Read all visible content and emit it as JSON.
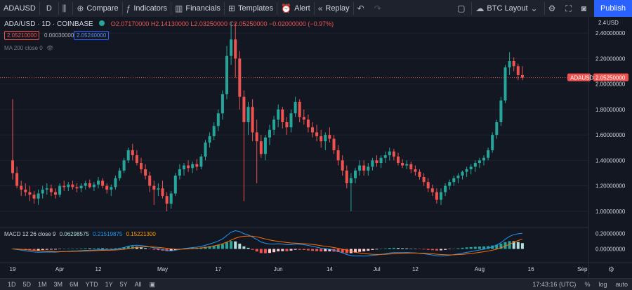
{
  "toolbar": {
    "symbol": "ADAUSD",
    "interval": "D",
    "compare": "Compare",
    "indicators": "Indicators",
    "financials": "Financials",
    "templates": "Templates",
    "alert": "Alert",
    "replay": "Replay",
    "layout": "BTC Layout",
    "publish": "Publish"
  },
  "legend": {
    "title": "ADA/USD · 1D · COINBASE",
    "open": "O2.07170000",
    "high": "H2.14130000",
    "low": "L2.03250000",
    "close": "C2.05250000",
    "change": "−0.02000000 (−0.97%)",
    "bid": "2.05210000",
    "spread": "0.00030000",
    "ask": "2.05240000",
    "ma": "MA 200 close 0",
    "macd_label": "MACD 12 26 close 9",
    "macd_v1": "0.06298575",
    "macd_v2": "0.21519875",
    "macd_v3": "0.15221300"
  },
  "price_axis": {
    "currency": "USD",
    "ticks": [
      "2.40000000",
      "2.20000000",
      "2.00000000",
      "1.80000000",
      "1.60000000",
      "1.40000000",
      "1.20000000",
      "1.00000000"
    ],
    "last_label": "ADAUSD",
    "last_value": "2.05250000"
  },
  "macd_axis": {
    "ticks": [
      "0.20000000",
      "0.00000000"
    ]
  },
  "time_axis": {
    "ticks": [
      "19",
      "Apr",
      "12",
      "May",
      "17",
      "Jun",
      "14",
      "Jul",
      "12",
      "Aug",
      "16",
      "Sep"
    ]
  },
  "bottom": {
    "ranges": [
      "1D",
      "5D",
      "1M",
      "3M",
      "6M",
      "YTD",
      "1Y",
      "5Y",
      "All"
    ],
    "time": "17:43:16 (UTC)",
    "percent": "%",
    "log": "log",
    "auto": "auto"
  },
  "colors": {
    "up": "#26a69a",
    "down": "#ef5350",
    "accent": "#2962ff",
    "macd": "#2196f3",
    "signal": "#ff6d00"
  },
  "chart_data": {
    "type": "candlestick",
    "symbol": "ADA/USD",
    "interval": "1D",
    "exchange": "COINBASE",
    "x_ticks": [
      "19",
      "Apr",
      "12",
      "May",
      "17",
      "Jun",
      "14",
      "Jul",
      "12",
      "Aug",
      "16",
      "Sep"
    ],
    "ylim": [
      0.9,
      2.5
    ],
    "candles": [
      [
        1.4,
        1.88,
        1.25,
        1.3
      ],
      [
        1.3,
        1.35,
        1.18,
        1.2
      ],
      [
        1.2,
        1.24,
        1.12,
        1.17
      ],
      [
        1.17,
        1.22,
        1.12,
        1.15
      ],
      [
        1.15,
        1.2,
        1.08,
        1.13
      ],
      [
        1.13,
        1.16,
        1.06,
        1.1
      ],
      [
        1.1,
        1.17,
        1.05,
        1.14
      ],
      [
        1.14,
        1.2,
        1.1,
        1.17
      ],
      [
        1.17,
        1.22,
        1.13,
        1.18
      ],
      [
        1.18,
        1.21,
        1.12,
        1.15
      ],
      [
        1.15,
        1.18,
        1.1,
        1.13
      ],
      [
        1.13,
        1.22,
        1.11,
        1.2
      ],
      [
        1.2,
        1.24,
        1.16,
        1.19
      ],
      [
        1.19,
        1.23,
        1.16,
        1.21
      ],
      [
        1.21,
        1.24,
        1.17,
        1.19
      ],
      [
        1.19,
        1.22,
        1.15,
        1.18
      ],
      [
        1.18,
        1.22,
        1.15,
        1.2
      ],
      [
        1.2,
        1.24,
        1.17,
        1.22
      ],
      [
        1.22,
        1.25,
        1.18,
        1.19
      ],
      [
        1.19,
        1.23,
        1.16,
        1.21
      ],
      [
        1.21,
        1.27,
        1.18,
        1.24
      ],
      [
        1.24,
        1.26,
        1.18,
        1.2
      ],
      [
        1.2,
        1.22,
        1.14,
        1.17
      ],
      [
        1.17,
        1.21,
        1.12,
        1.19
      ],
      [
        1.19,
        1.28,
        1.17,
        1.26
      ],
      [
        1.26,
        1.34,
        1.24,
        1.32
      ],
      [
        1.32,
        1.42,
        1.3,
        1.4
      ],
      [
        1.4,
        1.5,
        1.38,
        1.48
      ],
      [
        1.48,
        1.53,
        1.4,
        1.44
      ],
      [
        1.44,
        1.48,
        1.36,
        1.38
      ],
      [
        1.38,
        1.42,
        1.3,
        1.33
      ],
      [
        1.33,
        1.37,
        1.25,
        1.28
      ],
      [
        1.28,
        1.31,
        1.15,
        1.2
      ],
      [
        1.2,
        1.24,
        1.05,
        1.17
      ],
      [
        1.17,
        1.22,
        1.12,
        1.18
      ],
      [
        1.18,
        1.24,
        1.1,
        1.12
      ],
      [
        1.12,
        1.15,
        1.0,
        1.06
      ],
      [
        1.06,
        1.16,
        1.02,
        1.14
      ],
      [
        1.14,
        1.3,
        1.12,
        1.28
      ],
      [
        1.28,
        1.37,
        1.25,
        1.33
      ],
      [
        1.33,
        1.38,
        1.28,
        1.36
      ],
      [
        1.36,
        1.4,
        1.31,
        1.34
      ],
      [
        1.34,
        1.39,
        1.3,
        1.37
      ],
      [
        1.37,
        1.41,
        1.32,
        1.35
      ],
      [
        1.35,
        1.45,
        1.33,
        1.43
      ],
      [
        1.43,
        1.56,
        1.4,
        1.54
      ],
      [
        1.54,
        1.62,
        1.5,
        1.59
      ],
      [
        1.59,
        1.7,
        1.56,
        1.67
      ],
      [
        1.67,
        1.8,
        1.63,
        1.77
      ],
      [
        1.77,
        1.95,
        1.72,
        1.92
      ],
      [
        1.92,
        2.3,
        1.88,
        2.22
      ],
      [
        2.22,
        2.49,
        2.15,
        2.35
      ],
      [
        2.35,
        2.48,
        2.05,
        2.2
      ],
      [
        2.2,
        2.26,
        1.8,
        1.9
      ],
      [
        1.9,
        1.95,
        1.08,
        1.7
      ],
      [
        1.7,
        1.86,
        1.6,
        1.82
      ],
      [
        1.82,
        1.88,
        1.55,
        1.62
      ],
      [
        1.62,
        1.72,
        1.22,
        1.55
      ],
      [
        1.55,
        1.6,
        1.42,
        1.45
      ],
      [
        1.45,
        1.6,
        1.4,
        1.58
      ],
      [
        1.58,
        1.68,
        1.52,
        1.64
      ],
      [
        1.64,
        1.75,
        1.6,
        1.72
      ],
      [
        1.72,
        1.84,
        1.66,
        1.8
      ],
      [
        1.8,
        1.82,
        1.65,
        1.7
      ],
      [
        1.7,
        1.74,
        1.6,
        1.66
      ],
      [
        1.66,
        1.8,
        1.62,
        1.77
      ],
      [
        1.77,
        1.9,
        1.74,
        1.86
      ],
      [
        1.86,
        1.88,
        1.7,
        1.74
      ],
      [
        1.74,
        1.8,
        1.68,
        1.72
      ],
      [
        1.72,
        1.76,
        1.62,
        1.66
      ],
      [
        1.66,
        1.7,
        1.58,
        1.62
      ],
      [
        1.62,
        1.68,
        1.55,
        1.59
      ],
      [
        1.59,
        1.64,
        1.5,
        1.55
      ],
      [
        1.55,
        1.62,
        1.48,
        1.6
      ],
      [
        1.6,
        1.66,
        1.54,
        1.57
      ],
      [
        1.57,
        1.6,
        1.45,
        1.48
      ],
      [
        1.48,
        1.52,
        1.36,
        1.4
      ],
      [
        1.4,
        1.44,
        1.28,
        1.32
      ],
      [
        1.32,
        1.36,
        1.18,
        1.22
      ],
      [
        1.22,
        1.3,
        1.0,
        1.26
      ],
      [
        1.26,
        1.34,
        1.22,
        1.32
      ],
      [
        1.32,
        1.4,
        1.28,
        1.36
      ],
      [
        1.36,
        1.4,
        1.28,
        1.32
      ],
      [
        1.32,
        1.38,
        1.28,
        1.35
      ],
      [
        1.35,
        1.42,
        1.32,
        1.4
      ],
      [
        1.4,
        1.44,
        1.35,
        1.38
      ],
      [
        1.38,
        1.44,
        1.34,
        1.42
      ],
      [
        1.42,
        1.47,
        1.38,
        1.44
      ],
      [
        1.44,
        1.5,
        1.4,
        1.47
      ],
      [
        1.47,
        1.49,
        1.4,
        1.43
      ],
      [
        1.43,
        1.46,
        1.36,
        1.38
      ],
      [
        1.38,
        1.41,
        1.34,
        1.36
      ],
      [
        1.36,
        1.4,
        1.33,
        1.37
      ],
      [
        1.37,
        1.39,
        1.3,
        1.33
      ],
      [
        1.33,
        1.36,
        1.28,
        1.31
      ],
      [
        1.31,
        1.33,
        1.25,
        1.27
      ],
      [
        1.27,
        1.3,
        1.2,
        1.23
      ],
      [
        1.23,
        1.26,
        1.15,
        1.18
      ],
      [
        1.18,
        1.21,
        1.12,
        1.15
      ],
      [
        1.15,
        1.18,
        1.06,
        1.09
      ],
      [
        1.09,
        1.18,
        1.05,
        1.15
      ],
      [
        1.15,
        1.22,
        1.12,
        1.2
      ],
      [
        1.2,
        1.25,
        1.17,
        1.23
      ],
      [
        1.23,
        1.28,
        1.2,
        1.26
      ],
      [
        1.26,
        1.3,
        1.22,
        1.28
      ],
      [
        1.28,
        1.32,
        1.25,
        1.31
      ],
      [
        1.31,
        1.35,
        1.27,
        1.33
      ],
      [
        1.33,
        1.37,
        1.29,
        1.35
      ],
      [
        1.35,
        1.4,
        1.31,
        1.38
      ],
      [
        1.38,
        1.42,
        1.34,
        1.4
      ],
      [
        1.4,
        1.44,
        1.36,
        1.42
      ],
      [
        1.42,
        1.5,
        1.4,
        1.48
      ],
      [
        1.48,
        1.62,
        1.46,
        1.6
      ],
      [
        1.6,
        1.72,
        1.57,
        1.7
      ],
      [
        1.7,
        1.9,
        1.67,
        1.87
      ],
      [
        1.87,
        2.15,
        1.85,
        2.13
      ],
      [
        2.13,
        2.25,
        2.07,
        2.18
      ],
      [
        2.18,
        2.21,
        2.1,
        2.14
      ],
      [
        2.14,
        2.16,
        2.03,
        2.07
      ],
      [
        2.07,
        2.14,
        2.03,
        2.05
      ]
    ],
    "macd": {
      "label": "MACD 12 26 close 9",
      "ylim": [
        -0.15,
        0.25
      ],
      "points": 121,
      "latest": {
        "histogram": 0.06298575,
        "macd": 0.21519875,
        "signal": 0.152213
      }
    }
  }
}
